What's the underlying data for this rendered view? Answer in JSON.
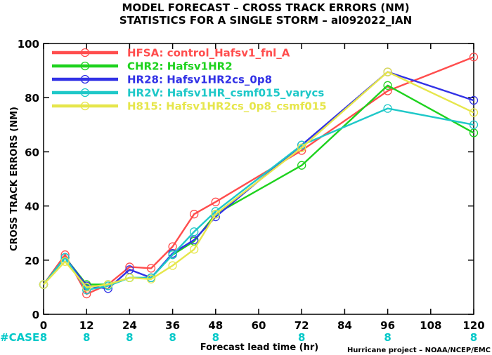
{
  "title_line1": "MODEL FORECAST – CROSS TRACK ERRORS (NM)",
  "title_line2": "STATISTICS FOR A SINGLE STORM – al092022_IAN",
  "case_label": "#CASE",
  "credit": "Hurricane project – NOAA/NCEP/EMC",
  "chart_data": {
    "type": "line",
    "title": "MODEL FORECAST – CROSS TRACK ERRORS (NM)",
    "subtitle": "STATISTICS FOR A SINGLE STORM – al092022_IAN",
    "xlabel": "Forecast lead time (hr)",
    "ylabel": "CROSS TRACK ERRORS (NM)",
    "xlim": [
      0,
      120
    ],
    "ylim": [
      0,
      100
    ],
    "x_ticks": [
      0,
      12,
      24,
      36,
      48,
      60,
      72,
      84,
      96,
      108,
      120
    ],
    "y_ticks": [
      0,
      20,
      40,
      60,
      80,
      100
    ],
    "grid": false,
    "legend_position": "top-left",
    "case_counts": [
      {
        "x": 0,
        "n": "8"
      },
      {
        "x": 12,
        "n": "8"
      },
      {
        "x": 24,
        "n": "8"
      },
      {
        "x": 36,
        "n": "8"
      },
      {
        "x": 48,
        "n": "8"
      },
      {
        "x": 72,
        "n": "8"
      },
      {
        "x": 96,
        "n": "8"
      },
      {
        "x": 120,
        "n": "8"
      }
    ],
    "series": [
      {
        "name": "HFSA: control_Hafsv1_fnl_A",
        "color": "#ff4d4d",
        "x": [
          0,
          6,
          12,
          18,
          24,
          30,
          36,
          42,
          48,
          72,
          96,
          120
        ],
        "y": [
          11,
          22,
          7.5,
          11,
          17.5,
          17,
          25,
          37,
          41.5,
          60.5,
          82.5,
          95
        ]
      },
      {
        "name": "CHR2: Hafsv1HR2",
        "color": "#1ed21e",
        "x": [
          0,
          6,
          12,
          18,
          24,
          30,
          36,
          42,
          48,
          72,
          96,
          120
        ],
        "y": [
          11,
          21,
          11,
          11,
          13.5,
          13.5,
          22,
          27,
          37,
          55,
          84.5,
          67
        ]
      },
      {
        "name": "HR28: Hafsv1HR2cs_0p8",
        "color": "#3232e6",
        "x": [
          0,
          6,
          12,
          18,
          24,
          30,
          36,
          42,
          48,
          72,
          96,
          120
        ],
        "y": [
          11,
          21,
          10.5,
          9.5,
          16.5,
          13.5,
          22.5,
          27.5,
          36,
          62.5,
          89.5,
          79
        ]
      },
      {
        "name": "HR2V: Hafsv1HR_csmf015_varycs",
        "color": "#1ec8c8",
        "x": [
          0,
          6,
          12,
          18,
          24,
          30,
          36,
          42,
          48,
          72,
          96,
          120
        ],
        "y": [
          11,
          21,
          9,
          10.5,
          13.5,
          13.5,
          22,
          30.5,
          38,
          62.5,
          76,
          70
        ]
      },
      {
        "name": "H815: Hafsv1HR2cs_0p8_csmf015",
        "color": "#e6e64b",
        "x": [
          0,
          6,
          12,
          18,
          24,
          30,
          36,
          42,
          48,
          72,
          96,
          120
        ],
        "y": [
          11,
          19.5,
          10,
          11,
          13.5,
          13,
          18,
          24,
          37,
          61.5,
          89.5,
          74.5
        ]
      }
    ]
  }
}
